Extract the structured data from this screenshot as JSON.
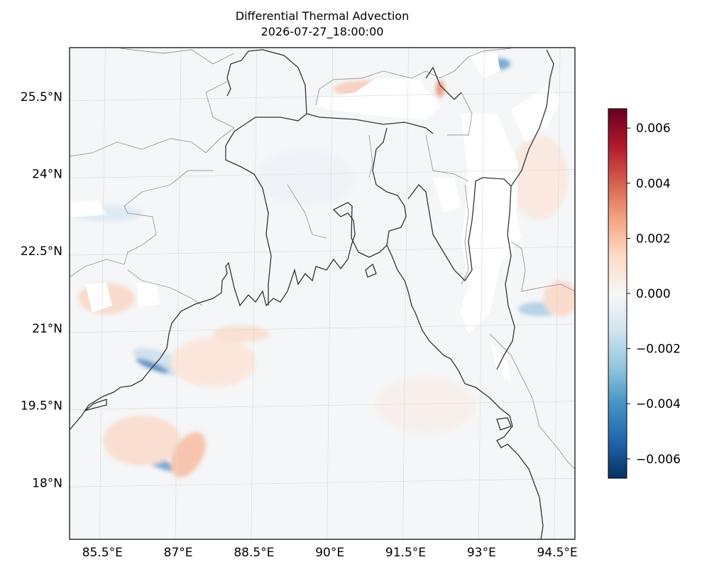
{
  "title": "Differential Thermal Advection",
  "subtitle": "2026-07-27_18:00:00",
  "map": {
    "lon_range": [
      84.85,
      94.85
    ],
    "lat_range": [
      16.9,
      26.45
    ],
    "lon_ticks": [
      {
        "value": 85.5,
        "label": "85.5°E"
      },
      {
        "value": 87,
        "label": "87°E"
      },
      {
        "value": 88.5,
        "label": "88.5°E"
      },
      {
        "value": 90,
        "label": "90°E"
      },
      {
        "value": 91.5,
        "label": "91.5°E"
      },
      {
        "value": 93,
        "label": "93°E"
      },
      {
        "value": 94.5,
        "label": "94.5°E"
      }
    ],
    "lat_ticks": [
      {
        "value": 25.5,
        "label": "25.5°N"
      },
      {
        "value": 24,
        "label": "24°N"
      },
      {
        "value": 22.5,
        "label": "22.5°N"
      },
      {
        "value": 21,
        "label": "21°N"
      },
      {
        "value": 19.5,
        "label": "19.5°N"
      },
      {
        "value": 18,
        "label": "18°N"
      }
    ],
    "gridlines": true
  },
  "colorbar": {
    "colormap": "RdBu_r",
    "range": [
      -0.0067,
      0.0067
    ],
    "ticks": [
      {
        "value": 0.006,
        "label": "0.006"
      },
      {
        "value": 0.004,
        "label": "0.004"
      },
      {
        "value": 0.002,
        "label": "0.002"
      },
      {
        "value": 0.0,
        "label": "0.000"
      },
      {
        "value": -0.002,
        "label": "−0.002"
      },
      {
        "value": -0.004,
        "label": "−0.004"
      },
      {
        "value": -0.006,
        "label": "−0.006"
      }
    ]
  },
  "colors": {
    "coastline": "#333333",
    "borders": "#999999",
    "gridline": "#d8d8d8",
    "field_background": "#f4f6f8",
    "missing": "#ffffff"
  }
}
